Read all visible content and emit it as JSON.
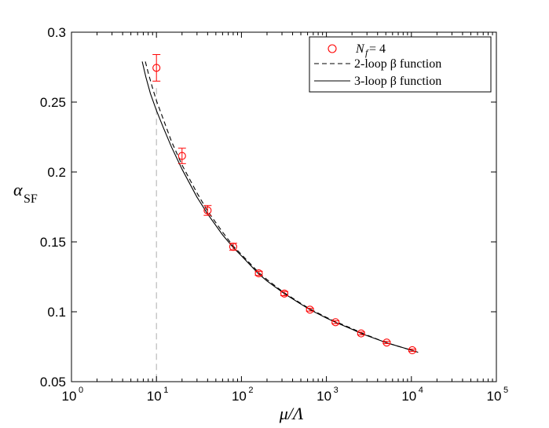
{
  "chart_data": {
    "type": "scatter",
    "xscale": "log",
    "xlim": [
      1,
      100000
    ],
    "ylim": [
      0.05,
      0.3
    ],
    "grid": false,
    "legend_position": "top-right",
    "xlabel": "μ/Λ",
    "ylabel_main": "α",
    "ylabel_sub": "SF",
    "x_ticks": [
      {
        "base": "10",
        "exp": "0",
        "value": 1
      },
      {
        "base": "10",
        "exp": "1",
        "value": 10
      },
      {
        "base": "10",
        "exp": "2",
        "value": 100
      },
      {
        "base": "10",
        "exp": "3",
        "value": 1000
      },
      {
        "base": "10",
        "exp": "4",
        "value": 10000
      },
      {
        "base": "10",
        "exp": "5",
        "value": 100000
      }
    ],
    "y_ticks": [
      "0.05",
      "0.1",
      "0.15",
      "0.2",
      "0.25",
      "0.3"
    ],
    "series": [
      {
        "name": "N_f = 4",
        "legend_label_main": "N",
        "legend_label_sub": "f",
        "legend_label_rest": " = 4",
        "kind": "points",
        "color": "#ff0000",
        "marker": "circle",
        "points": [
          {
            "x": 10,
            "y": 0.2745,
            "err": 0.0095
          },
          {
            "x": 20,
            "y": 0.2115,
            "err": 0.0055
          },
          {
            "x": 40,
            "y": 0.1725,
            "err": 0.0035
          },
          {
            "x": 80,
            "y": 0.1465,
            "err": 0.0025
          },
          {
            "x": 160,
            "y": 0.1275,
            "err": 0.0015
          },
          {
            "x": 320,
            "y": 0.113,
            "err": 0.0015
          },
          {
            "x": 640,
            "y": 0.1015,
            "err": 0.001
          },
          {
            "x": 1280,
            "y": 0.0925,
            "err": 0.001
          },
          {
            "x": 2560,
            "y": 0.0845,
            "err": 0.001
          },
          {
            "x": 5120,
            "y": 0.078,
            "err": 0.0008
          },
          {
            "x": 10240,
            "y": 0.0725,
            "err": 0.0008
          }
        ]
      },
      {
        "name": "2-loop β function",
        "legend_label": "2-loop β function",
        "kind": "line",
        "color": "#000000",
        "dash": "dashed",
        "points": [
          {
            "x": 7.4,
            "y": 0.279
          },
          {
            "x": 8,
            "y": 0.271
          },
          {
            "x": 9,
            "y": 0.26
          },
          {
            "x": 10,
            "y": 0.251
          },
          {
            "x": 12,
            "y": 0.238
          },
          {
            "x": 15,
            "y": 0.222
          },
          {
            "x": 20,
            "y": 0.205
          },
          {
            "x": 30,
            "y": 0.185
          },
          {
            "x": 40,
            "y": 0.172
          },
          {
            "x": 60,
            "y": 0.157
          },
          {
            "x": 80,
            "y": 0.147
          },
          {
            "x": 100,
            "y": 0.141
          },
          {
            "x": 160,
            "y": 0.128
          },
          {
            "x": 200,
            "y": 0.123
          },
          {
            "x": 320,
            "y": 0.1135
          },
          {
            "x": 500,
            "y": 0.106
          },
          {
            "x": 640,
            "y": 0.102
          },
          {
            "x": 1000,
            "y": 0.096
          },
          {
            "x": 1280,
            "y": 0.093
          },
          {
            "x": 2000,
            "y": 0.088
          },
          {
            "x": 2560,
            "y": 0.085
          },
          {
            "x": 5000,
            "y": 0.078
          },
          {
            "x": 10000,
            "y": 0.0725
          },
          {
            "x": 12000,
            "y": 0.071
          }
        ]
      },
      {
        "name": "3-loop β function",
        "legend_label": "3-loop β function",
        "kind": "line",
        "color": "#000000",
        "dash": "solid",
        "points": [
          {
            "x": 6.8,
            "y": 0.279
          },
          {
            "x": 7.5,
            "y": 0.268
          },
          {
            "x": 8.5,
            "y": 0.256
          },
          {
            "x": 10,
            "y": 0.244
          },
          {
            "x": 12,
            "y": 0.232
          },
          {
            "x": 15,
            "y": 0.218
          },
          {
            "x": 20,
            "y": 0.202
          },
          {
            "x": 30,
            "y": 0.182
          },
          {
            "x": 40,
            "y": 0.17
          },
          {
            "x": 60,
            "y": 0.155
          },
          {
            "x": 80,
            "y": 0.146
          },
          {
            "x": 100,
            "y": 0.14
          },
          {
            "x": 160,
            "y": 0.127
          },
          {
            "x": 200,
            "y": 0.122
          },
          {
            "x": 320,
            "y": 0.113
          },
          {
            "x": 500,
            "y": 0.1055
          },
          {
            "x": 640,
            "y": 0.1015
          },
          {
            "x": 1000,
            "y": 0.0955
          },
          {
            "x": 1280,
            "y": 0.0925
          },
          {
            "x": 2000,
            "y": 0.0875
          },
          {
            "x": 2560,
            "y": 0.0845
          },
          {
            "x": 5000,
            "y": 0.078
          },
          {
            "x": 10000,
            "y": 0.0725
          },
          {
            "x": 12000,
            "y": 0.071
          }
        ]
      }
    ],
    "reference_line": {
      "x": 10,
      "color": "#bbbbbb",
      "dash": "dashed"
    }
  }
}
